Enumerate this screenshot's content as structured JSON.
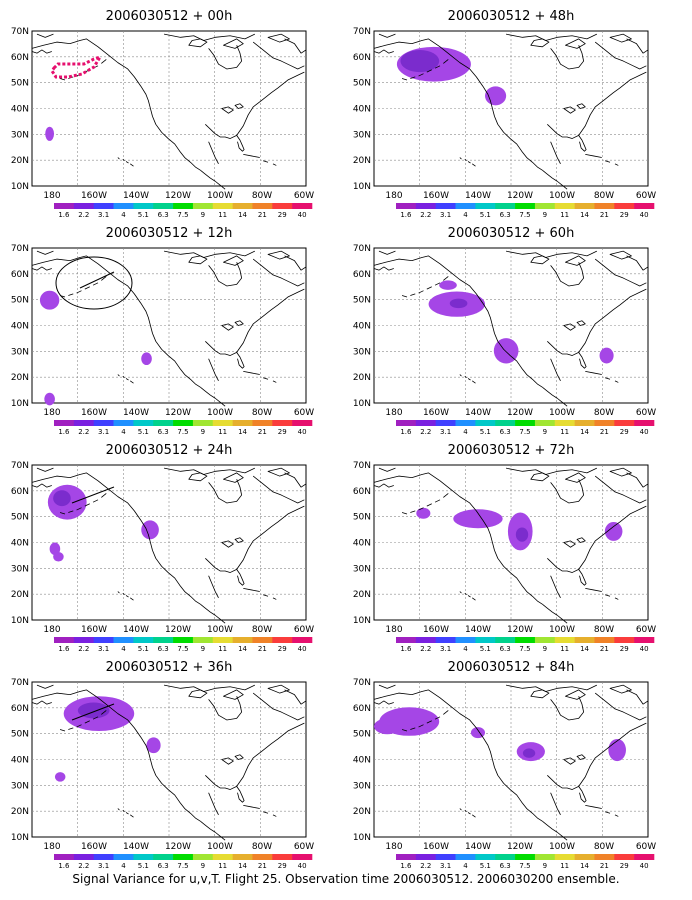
{
  "caption": "Signal Variance for u,v,T. Flight 25. Observation time 2006030512. 2006030200 ensemble.",
  "panels": [
    {
      "title": "2006030512 + 00h"
    },
    {
      "title": "2006030512 + 48h"
    },
    {
      "title": "2006030512 + 12h"
    },
    {
      "title": "2006030512 + 60h"
    },
    {
      "title": "2006030512 + 24h"
    },
    {
      "title": "2006030512 + 72h"
    },
    {
      "title": "2006030512 + 36h"
    },
    {
      "title": "2006030512 + 84h"
    }
  ],
  "axes": {
    "lat_labels": [
      "70N",
      "60N",
      "50N",
      "40N",
      "30N",
      "20N",
      "10N"
    ],
    "lon_labels": [
      "180",
      "160W",
      "140W",
      "120W",
      "100W",
      "80W",
      "60W"
    ]
  },
  "colorbar": {
    "labels": [
      "1.6",
      "2.2",
      "3.1",
      "4",
      "5.1",
      "6.3",
      "7.5",
      "9",
      "11",
      "14",
      "21",
      "29",
      "40"
    ],
    "colors": [
      "#a020c0",
      "#7a20e0",
      "#4040ff",
      "#2090ff",
      "#00c8c8",
      "#00d28c",
      "#00dc00",
      "#a0e632",
      "#e6dc32",
      "#e6af2d",
      "#f08228",
      "#fa3c3c",
      "#e6106e"
    ]
  },
  "colors": {
    "signal_fill": "#a546e6",
    "signal_core": "#7328c8",
    "flight_track": "#e6106e",
    "coast": "#000000",
    "grid": "#8c8c8c"
  }
}
